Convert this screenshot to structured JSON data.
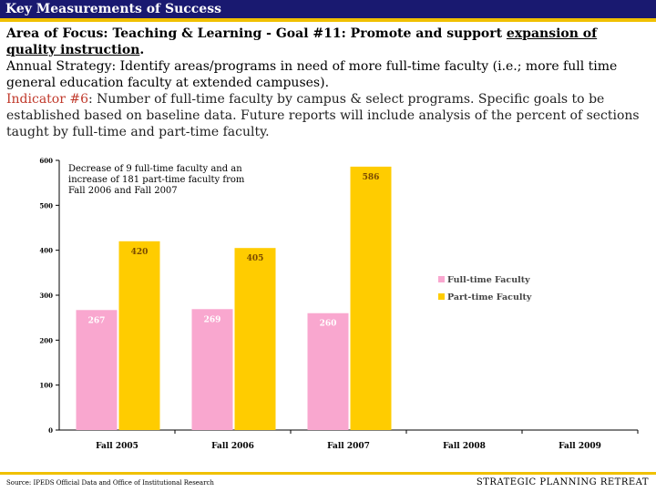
{
  "header": {
    "title": "Key Measurements of Success"
  },
  "focus": {
    "prefix": "Area of Focus: Teaching & Learning - Goal #11:  Promote and support ",
    "underlined": "expansion of quality instruction",
    "suffix": "."
  },
  "strategy": "Annual Strategy:  Identify areas/programs in need of more full-time faculty (i.e.;  more full time general education faculty at extended campuses).",
  "indicator": {
    "label": "Indicator #6",
    "text": ":  Number of full-time faculty by campus & select programs. Specific goals to be established based on baseline data. Future reports will include analysis of the percent of sections taught by full-time and part-time faculty."
  },
  "annotation": "Decrease of 9 full-time faculty and an increase of 181 part-time faculty from Fall 2006 and Fall 2007",
  "colors": {
    "full_time": "#f9a7cf",
    "part_time": "#ffcc00",
    "header_bg": "#191970",
    "accent": "#f0c000"
  },
  "chart_data": {
    "type": "bar",
    "categories": [
      "Fall 2005",
      "Fall 2006",
      "Fall 2007",
      "Fall 2008",
      "Fall 2009"
    ],
    "series": [
      {
        "name": "Full-time Faculty",
        "values": [
          267,
          269,
          260,
          null,
          null
        ]
      },
      {
        "name": "Part-time Faculty",
        "values": [
          420,
          405,
          586,
          null,
          null
        ]
      }
    ],
    "yticks": [
      "0",
      "100",
      "200",
      "300",
      "400",
      "500",
      "600"
    ],
    "ylim": [
      0,
      600
    ],
    "legend": "right"
  },
  "footer": {
    "source": "Source:  IPEDS Official Data and Office of Institutional Research",
    "right": "STRATEGIC PLANNING RETREAT"
  }
}
